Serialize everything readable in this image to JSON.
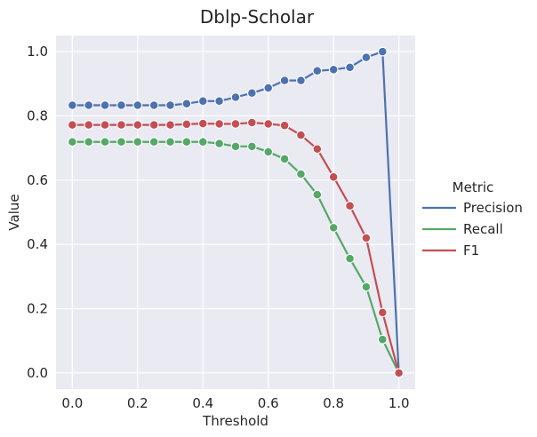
{
  "chart_data": {
    "type": "line",
    "title": "Dblp-Scholar",
    "xlabel": "Threshold",
    "ylabel": "Value",
    "xlim": [
      -0.05,
      1.05
    ],
    "ylim": [
      -0.05,
      1.05
    ],
    "xticks": [
      "0.0",
      "0.2",
      "0.4",
      "0.6",
      "0.8",
      "1.0"
    ],
    "yticks": [
      "0.0",
      "0.2",
      "0.4",
      "0.6",
      "0.8",
      "1.0"
    ],
    "grid": true,
    "legend": {
      "title": "Metric",
      "placement": "right"
    },
    "x": [
      0.0,
      0.05,
      0.1,
      0.15,
      0.2,
      0.25,
      0.3,
      0.35,
      0.4,
      0.45,
      0.5,
      0.55,
      0.6,
      0.65,
      0.7,
      0.75,
      0.8,
      0.85,
      0.9,
      0.95,
      1.0
    ],
    "series": [
      {
        "name": "Precision",
        "color": "#4c72b0",
        "values": [
          0.833,
          0.833,
          0.833,
          0.833,
          0.833,
          0.833,
          0.833,
          0.838,
          0.846,
          0.846,
          0.858,
          0.871,
          0.887,
          0.91,
          0.91,
          0.94,
          0.944,
          0.951,
          0.982,
          1.0,
          0.0
        ]
      },
      {
        "name": "Recall",
        "color": "#55a868",
        "values": [
          0.719,
          0.719,
          0.719,
          0.719,
          0.719,
          0.719,
          0.719,
          0.719,
          0.719,
          0.714,
          0.705,
          0.705,
          0.688,
          0.666,
          0.619,
          0.555,
          0.452,
          0.356,
          0.268,
          0.104,
          0.0
        ]
      },
      {
        "name": "F1",
        "color": "#c44e52",
        "values": [
          0.772,
          0.772,
          0.772,
          0.772,
          0.772,
          0.772,
          0.772,
          0.774,
          0.776,
          0.775,
          0.775,
          0.779,
          0.775,
          0.77,
          0.74,
          0.697,
          0.61,
          0.52,
          0.42,
          0.188,
          0.0
        ]
      }
    ]
  }
}
